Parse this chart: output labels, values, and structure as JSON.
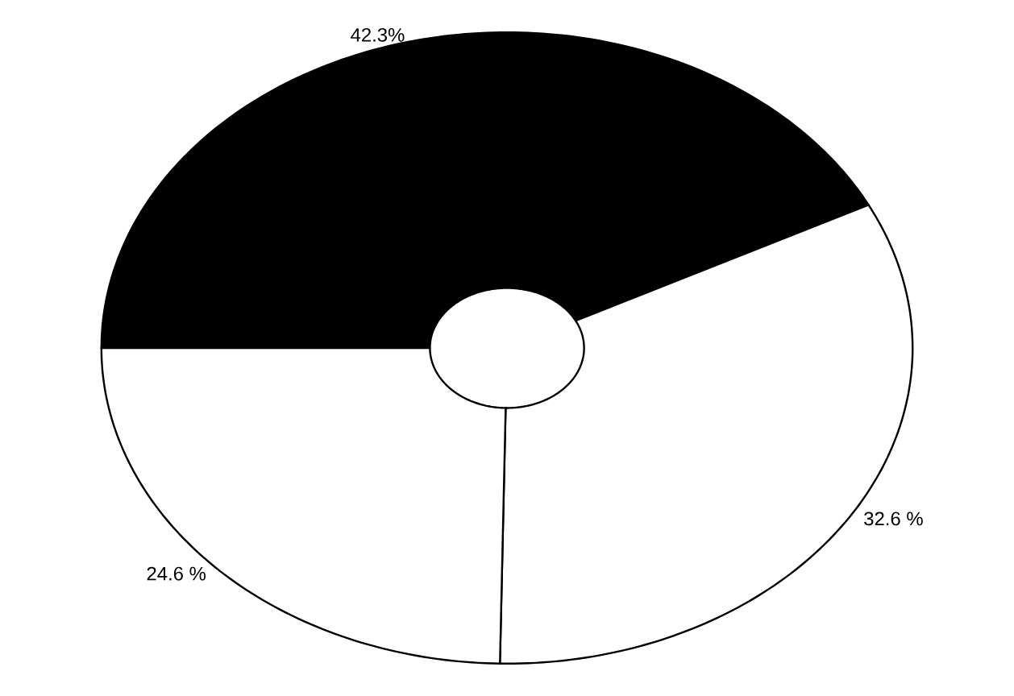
{
  "chart_data": {
    "type": "pie",
    "categories": [
      null,
      null,
      null
    ],
    "values": [
      42.3,
      32.6,
      24.6
    ],
    "value_labels": [
      "42.3%",
      "32.6 %",
      "24.6 %"
    ],
    "colors": [
      "#000000",
      "#ffffff",
      "#ffffff"
    ]
  }
}
